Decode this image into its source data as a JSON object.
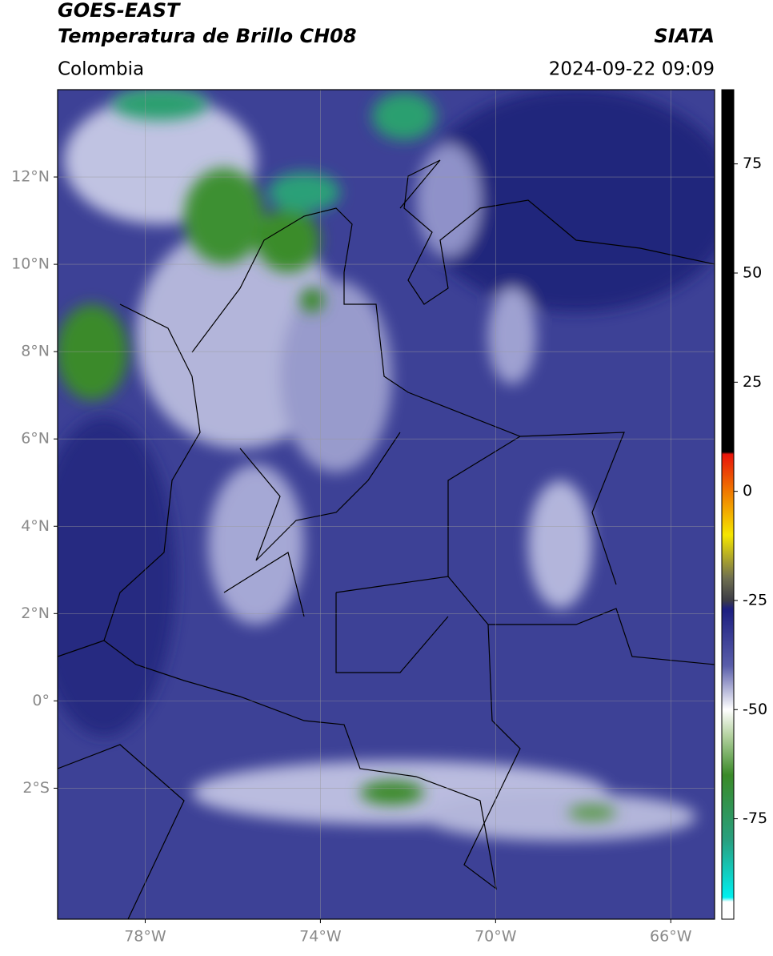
{
  "header": {
    "title": "GOES-EAST",
    "subtitle": "Temperatura de Brillo CH08",
    "source": "SIATA",
    "region": "Colombia",
    "datetime": "2024-09-22 09:09"
  },
  "map": {
    "lonlim": [
      -80,
      -65
    ],
    "latlim": [
      -5,
      14
    ],
    "lon_ticks": [
      {
        "value": -78,
        "label": "78°W"
      },
      {
        "value": -74,
        "label": "74°W"
      },
      {
        "value": -70,
        "label": "70°W"
      },
      {
        "value": -66,
        "label": "66°W"
      }
    ],
    "lat_ticks": [
      {
        "value": 12,
        "label": "12°N"
      },
      {
        "value": 10,
        "label": "10°N"
      },
      {
        "value": 8,
        "label": "8°N"
      },
      {
        "value": 6,
        "label": "6°N"
      },
      {
        "value": 4,
        "label": "4°N"
      },
      {
        "value": 2,
        "label": "2°N"
      },
      {
        "value": 0,
        "label": "0°"
      },
      {
        "value": -2,
        "label": "2°S"
      }
    ],
    "grid": true,
    "colorbar": {
      "lim": [
        -98,
        92
      ],
      "ticks": [
        75,
        50,
        25,
        0,
        -25,
        -50,
        -75
      ],
      "stops": [
        {
          "value": 92,
          "color": "#000000"
        },
        {
          "value": 9,
          "color": "#000000"
        },
        {
          "value": 8.5,
          "color": "#e8140a"
        },
        {
          "value": 0,
          "color": "#f07800"
        },
        {
          "value": -10,
          "color": "#f5e600"
        },
        {
          "value": -20,
          "color": "#6e6e50"
        },
        {
          "value": -25,
          "color": "#3c3c46"
        },
        {
          "value": -27,
          "color": "#1c1e80"
        },
        {
          "value": -40,
          "color": "#5a5eaa"
        },
        {
          "value": -50,
          "color": "#ffffff"
        },
        {
          "value": -56,
          "color": "#b4d2a0"
        },
        {
          "value": -65,
          "color": "#3a8a28"
        },
        {
          "value": -80,
          "color": "#28a080"
        },
        {
          "value": -93,
          "color": "#00f0f0"
        },
        {
          "value": -94,
          "color": "#ffffff"
        },
        {
          "value": -98,
          "color": "#ffffff"
        }
      ]
    }
  }
}
